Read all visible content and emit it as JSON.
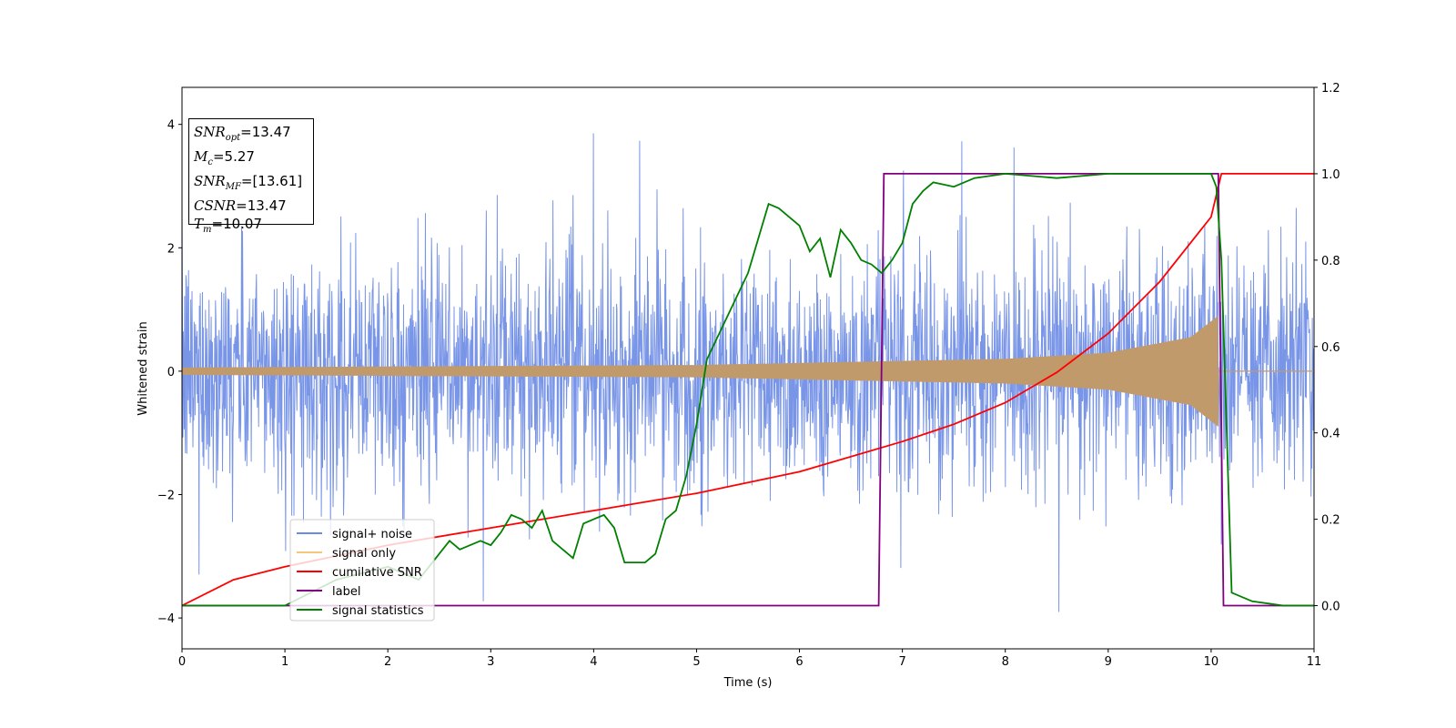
{
  "chart_data": {
    "type": "line",
    "xlabel": "Time (s)",
    "ylabel": "Whitened strain",
    "xlim": [
      0,
      11
    ],
    "ylim_left": [
      -4.5,
      4.6
    ],
    "ylim_right": [
      -0.1,
      1.2
    ],
    "x_ticks": [
      0,
      1,
      2,
      3,
      4,
      5,
      6,
      7,
      8,
      9,
      10,
      11
    ],
    "y_ticks_left": [
      -4,
      -2,
      0,
      2,
      4
    ],
    "y_ticks_right": [
      0.0,
      0.2,
      0.4,
      0.6,
      0.8,
      1.0,
      1.2
    ],
    "legend_location": "lower-left",
    "series": [
      {
        "name": "signal+ noise",
        "axis": "left",
        "color": "#6a8ae6",
        "description": "whitened noise with embedded chirp, amplitude ~±2.5, spikes to ~±4"
      },
      {
        "name": "signal only",
        "axis": "left",
        "color": "#f5c77e",
        "envelope_points": [
          [
            0,
            0.06
          ],
          [
            5,
            0.1
          ],
          [
            8,
            0.2
          ],
          [
            9,
            0.3
          ],
          [
            9.8,
            0.55
          ],
          [
            10.07,
            0.9
          ]
        ],
        "ends_at": 10.07
      },
      {
        "name": "cumilative SNR",
        "axis": "right",
        "color": "#ff0000",
        "x": [
          0,
          0.5,
          1,
          2,
          3,
          4,
          5,
          6,
          7,
          7.5,
          8,
          8.5,
          9,
          9.5,
          10,
          10.1,
          11
        ],
        "y": [
          0.0,
          0.06,
          0.09,
          0.14,
          0.18,
          0.22,
          0.26,
          0.31,
          0.38,
          0.42,
          0.47,
          0.54,
          0.63,
          0.75,
          0.9,
          1.0,
          1.0
        ]
      },
      {
        "name": "label",
        "axis": "right",
        "color": "#800080",
        "x": [
          0,
          6.77,
          6.82,
          10.07,
          10.12,
          11
        ],
        "y": [
          0,
          0,
          1,
          1,
          0,
          0
        ]
      },
      {
        "name": "signal statistics",
        "axis": "right",
        "color": "#008000",
        "x": [
          0,
          1,
          1.5,
          2,
          2.3,
          2.5,
          2.6,
          2.7,
          2.8,
          2.9,
          3.0,
          3.1,
          3.2,
          3.3,
          3.4,
          3.5,
          3.6,
          3.7,
          3.8,
          3.9,
          4.0,
          4.1,
          4.2,
          4.3,
          4.4,
          4.5,
          4.6,
          4.7,
          4.8,
          4.9,
          5.0,
          5.1,
          5.2,
          5.3,
          5.4,
          5.5,
          5.6,
          5.7,
          5.8,
          5.9,
          6.0,
          6.1,
          6.2,
          6.3,
          6.4,
          6.5,
          6.6,
          6.7,
          6.8,
          6.9,
          7.0,
          7.1,
          7.2,
          7.3,
          7.5,
          7.7,
          8.0,
          8.5,
          9.0,
          9.5,
          9.8,
          10.0,
          10.05,
          10.1,
          10.2,
          10.4,
          10.7,
          11
        ],
        "y": [
          0.0,
          0.0,
          0.06,
          0.09,
          0.06,
          0.12,
          0.15,
          0.13,
          0.14,
          0.15,
          0.14,
          0.17,
          0.21,
          0.2,
          0.18,
          0.22,
          0.15,
          0.13,
          0.11,
          0.19,
          0.2,
          0.21,
          0.18,
          0.1,
          0.1,
          0.1,
          0.12,
          0.2,
          0.22,
          0.3,
          0.42,
          0.57,
          0.62,
          0.67,
          0.72,
          0.77,
          0.85,
          0.93,
          0.92,
          0.9,
          0.88,
          0.82,
          0.85,
          0.76,
          0.87,
          0.84,
          0.8,
          0.79,
          0.77,
          0.8,
          0.84,
          0.93,
          0.96,
          0.98,
          0.97,
          0.99,
          1.0,
          0.99,
          1.0,
          1.0,
          1.0,
          1.0,
          0.97,
          0.8,
          0.03,
          0.01,
          0.0,
          0.0
        ]
      }
    ],
    "annotation": {
      "SNR_opt": "13.47",
      "M_c": "5.27",
      "SNR_MF": "[13.61]",
      "CSNR": "13.47",
      "T_m": "10.07"
    }
  },
  "info": {
    "snr_opt_label": "SNR",
    "snr_opt_sub": "opt",
    "snr_opt_value": "=13.47",
    "mc_label": "M",
    "mc_sub": "c",
    "mc_value": "=5.27",
    "snr_mf_label": "SNR",
    "snr_mf_sub": "MF",
    "snr_mf_value": "=[13.61]",
    "csnr_label": "CSNR",
    "csnr_value": "=13.47",
    "tm_label": "T",
    "tm_sub": "m",
    "tm_value": "=10.07"
  },
  "colors": {
    "noise": "#6a8ae6",
    "signal": "#f5c77e",
    "signal_overlay": "#c19a6b",
    "cumulative_snr": "#ff0000",
    "label": "#800080",
    "statistics": "#008000"
  }
}
